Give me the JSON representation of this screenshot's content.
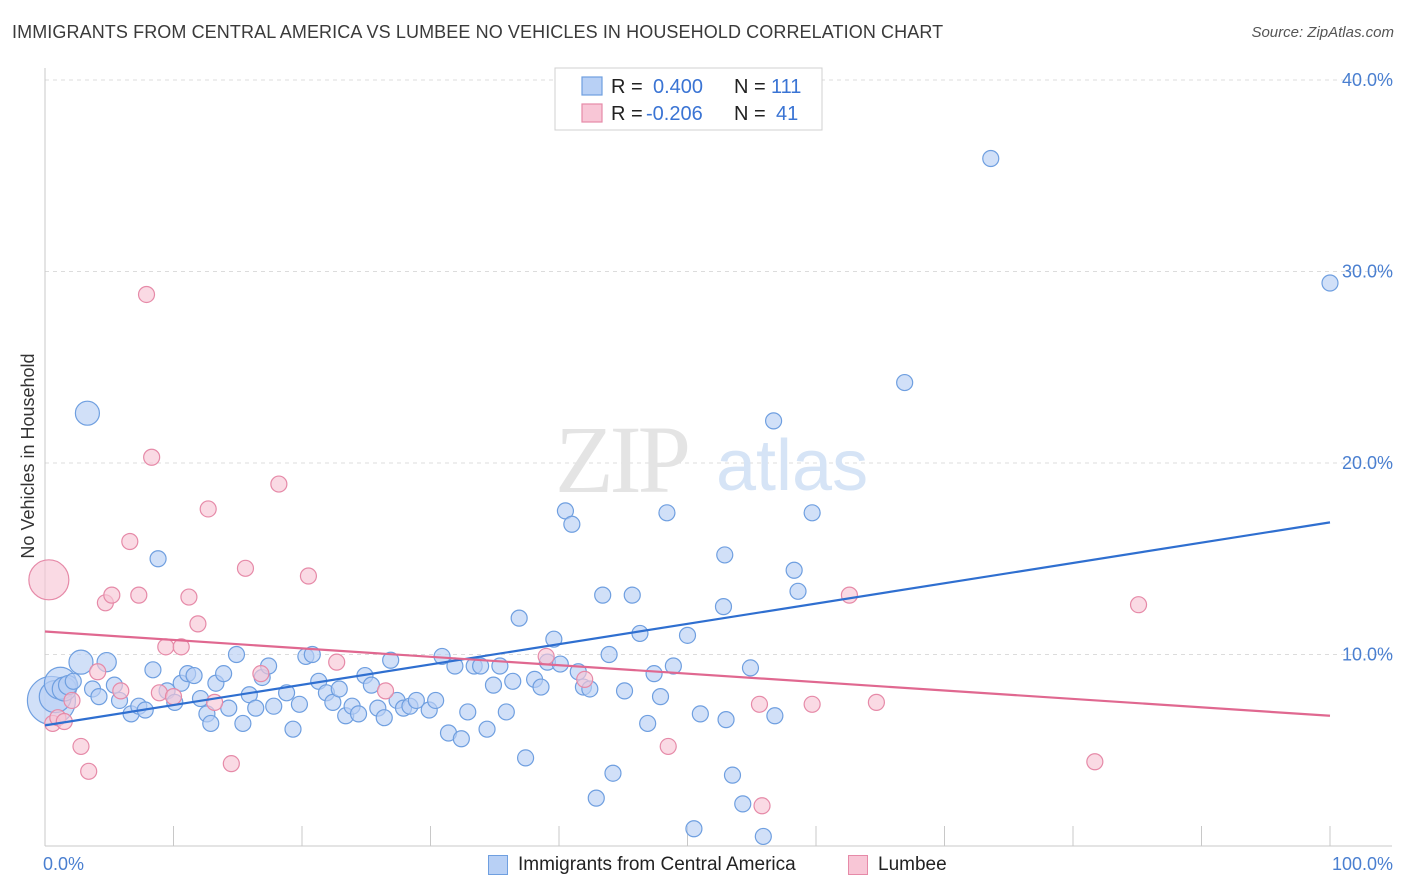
{
  "title": "IMMIGRANTS FROM CENTRAL AMERICA VS LUMBEE NO VEHICLES IN HOUSEHOLD CORRELATION CHART",
  "source": "Source: ZipAtlas.com",
  "watermark": {
    "zip": "ZIP",
    "atlas": "atlas"
  },
  "colors": {
    "blue_fill": "#b8d0f5",
    "blue_stroke": "#6f9fe0",
    "blue_line": "#2f6fd0",
    "pink_fill": "#f8c6d6",
    "pink_stroke": "#e68aa8",
    "pink_line": "#e06890",
    "value_text": "#3a74d4"
  },
  "stats_legend": [
    {
      "r_label": "R =",
      "r_value": "0.400",
      "n_label": "N =",
      "n_value": "111"
    },
    {
      "r_label": "R =",
      "r_value": "-0.206",
      "n_label": "N =",
      "n_value": "41"
    }
  ],
  "chart_data": {
    "type": "scatter",
    "title": "IMMIGRANTS FROM CENTRAL AMERICA VS LUMBEE NO VEHICLES IN HOUSEHOLD CORRELATION CHART",
    "xlabel": "",
    "ylabel": "No Vehicles in Household",
    "xlim": [
      0,
      100
    ],
    "ylim": [
      0,
      40
    ],
    "x_tick_labels": [
      "0.0%",
      "100.0%"
    ],
    "y_ticks": [
      10,
      20,
      30,
      40
    ],
    "y_tick_labels": [
      "10.0%",
      "20.0%",
      "30.0%",
      "40.0%"
    ],
    "grid": "horizontal dashed",
    "legend_position": "bottom-center",
    "series": [
      {
        "name": "Immigrants from Central America",
        "color": "#6f9fe0",
        "trend": {
          "x": [
            0,
            100
          ],
          "y": [
            6.3,
            16.9
          ]
        },
        "points": [
          [
            0.5,
            7.6,
            3
          ],
          [
            0.8,
            7.8,
            2
          ],
          [
            1.2,
            8.5,
            2
          ],
          [
            1.5,
            8.2,
            1.5
          ],
          [
            1.8,
            8.4,
            1.2
          ],
          [
            2.2,
            8.6,
            1
          ],
          [
            2.8,
            9.6,
            1.5
          ],
          [
            3.3,
            22.6,
            1.5
          ],
          [
            3.7,
            8.2,
            1
          ],
          [
            4.2,
            7.8,
            1
          ],
          [
            4.8,
            9.6,
            1.2
          ],
          [
            5.4,
            8.4,
            1
          ],
          [
            5.8,
            7.6,
            1
          ],
          [
            6.7,
            6.9,
            1
          ],
          [
            7.3,
            7.3,
            1
          ],
          [
            7.8,
            7.1,
            1
          ],
          [
            8.4,
            9.2,
            1
          ],
          [
            8.8,
            15.0,
            1
          ],
          [
            9.5,
            8.1,
            1
          ],
          [
            10.1,
            7.5,
            1
          ],
          [
            10.6,
            8.5,
            1
          ],
          [
            11.1,
            9.0,
            1
          ],
          [
            11.6,
            8.9,
            1
          ],
          [
            12.1,
            7.7,
            1
          ],
          [
            12.6,
            6.9,
            1
          ],
          [
            12.9,
            6.4,
            1
          ],
          [
            13.3,
            8.5,
            1
          ],
          [
            13.9,
            9.0,
            1
          ],
          [
            14.3,
            7.2,
            1
          ],
          [
            14.9,
            10.0,
            1
          ],
          [
            15.4,
            6.4,
            1
          ],
          [
            15.9,
            7.9,
            1
          ],
          [
            16.4,
            7.2,
            1
          ],
          [
            16.9,
            8.8,
            1
          ],
          [
            17.4,
            9.4,
            1
          ],
          [
            17.8,
            7.3,
            1
          ],
          [
            18.8,
            8.0,
            1
          ],
          [
            19.3,
            6.1,
            1
          ],
          [
            19.8,
            7.4,
            1
          ],
          [
            20.3,
            9.9,
            1
          ],
          [
            20.8,
            10.0,
            1
          ],
          [
            21.3,
            8.6,
            1
          ],
          [
            21.9,
            8.0,
            1
          ],
          [
            22.4,
            7.5,
            1
          ],
          [
            22.9,
            8.2,
            1
          ],
          [
            23.4,
            6.8,
            1
          ],
          [
            23.9,
            7.3,
            1
          ],
          [
            24.4,
            6.9,
            1
          ],
          [
            24.9,
            8.9,
            1
          ],
          [
            25.4,
            8.4,
            1
          ],
          [
            25.9,
            7.2,
            1
          ],
          [
            26.4,
            6.7,
            1
          ],
          [
            26.9,
            9.7,
            1
          ],
          [
            27.4,
            7.6,
            1
          ],
          [
            27.9,
            7.2,
            1
          ],
          [
            28.4,
            7.3,
            1
          ],
          [
            28.9,
            7.6,
            1
          ],
          [
            29.9,
            7.1,
            1
          ],
          [
            30.4,
            7.6,
            1
          ],
          [
            30.9,
            9.9,
            1
          ],
          [
            31.4,
            5.9,
            1
          ],
          [
            31.9,
            9.4,
            1
          ],
          [
            32.4,
            5.6,
            1
          ],
          [
            32.9,
            7.0,
            1
          ],
          [
            33.4,
            9.4,
            1
          ],
          [
            33.9,
            9.4,
            1
          ],
          [
            34.4,
            6.1,
            1
          ],
          [
            34.9,
            8.4,
            1
          ],
          [
            35.4,
            9.4,
            1
          ],
          [
            35.9,
            7.0,
            1
          ],
          [
            36.4,
            8.6,
            1
          ],
          [
            36.9,
            11.9,
            1
          ],
          [
            37.4,
            4.6,
            1
          ],
          [
            38.1,
            8.7,
            1
          ],
          [
            38.6,
            8.3,
            1
          ],
          [
            39.1,
            9.6,
            1
          ],
          [
            39.6,
            10.8,
            1
          ],
          [
            40.1,
            9.5,
            1
          ],
          [
            40.5,
            17.5,
            1
          ],
          [
            41.0,
            16.8,
            1
          ],
          [
            41.5,
            9.1,
            1
          ],
          [
            41.9,
            8.3,
            1
          ],
          [
            42.4,
            8.2,
            1
          ],
          [
            42.9,
            2.5,
            1
          ],
          [
            43.4,
            13.1,
            1
          ],
          [
            43.9,
            10.0,
            1
          ],
          [
            44.2,
            3.8,
            1
          ],
          [
            45.1,
            8.1,
            1
          ],
          [
            45.7,
            13.1,
            1
          ],
          [
            46.3,
            11.1,
            1
          ],
          [
            46.9,
            6.4,
            1
          ],
          [
            47.4,
            9.0,
            1
          ],
          [
            47.9,
            7.8,
            1
          ],
          [
            48.4,
            17.4,
            1
          ],
          [
            48.9,
            9.4,
            1
          ],
          [
            50.0,
            11.0,
            1
          ],
          [
            50.5,
            0.9,
            1
          ],
          [
            51.0,
            6.9,
            1
          ],
          [
            52.8,
            12.5,
            1
          ],
          [
            53.0,
            6.6,
            1
          ],
          [
            53.5,
            3.7,
            1
          ],
          [
            54.3,
            2.2,
            1
          ],
          [
            52.9,
            15.2,
            1
          ],
          [
            54.9,
            9.3,
            1
          ],
          [
            55.9,
            0.5,
            1
          ],
          [
            56.8,
            6.8,
            1
          ],
          [
            56.7,
            22.2,
            1
          ],
          [
            58.3,
            14.4,
            1
          ],
          [
            58.6,
            13.3,
            1
          ],
          [
            59.7,
            17.4,
            1
          ],
          [
            66.9,
            24.2,
            1
          ],
          [
            73.6,
            35.9,
            1
          ],
          [
            100.0,
            29.4,
            1
          ]
        ]
      },
      {
        "name": "Lumbee",
        "color": "#e68aa8",
        "trend": {
          "x": [
            0,
            100
          ],
          "y": [
            11.2,
            6.8
          ]
        },
        "points": [
          [
            0.3,
            13.9,
            2.5
          ],
          [
            0.6,
            6.4,
            1
          ],
          [
            1.0,
            6.7,
            1
          ],
          [
            1.5,
            6.5,
            1
          ],
          [
            2.1,
            7.6,
            1
          ],
          [
            2.8,
            5.2,
            1
          ],
          [
            3.4,
            3.9,
            1
          ],
          [
            4.1,
            9.1,
            1
          ],
          [
            4.7,
            12.7,
            1
          ],
          [
            5.2,
            13.1,
            1
          ],
          [
            5.9,
            8.1,
            1
          ],
          [
            6.6,
            15.9,
            1
          ],
          [
            7.3,
            13.1,
            1
          ],
          [
            7.9,
            28.8,
            1
          ],
          [
            8.3,
            20.3,
            1
          ],
          [
            8.9,
            8.0,
            1
          ],
          [
            9.4,
            10.4,
            1
          ],
          [
            10.0,
            7.8,
            1
          ],
          [
            10.6,
            10.4,
            1
          ],
          [
            11.2,
            13.0,
            1
          ],
          [
            11.9,
            11.6,
            1
          ],
          [
            12.7,
            17.6,
            1
          ],
          [
            13.2,
            7.5,
            1
          ],
          [
            14.5,
            4.3,
            1
          ],
          [
            15.6,
            14.5,
            1
          ],
          [
            16.8,
            9.0,
            1
          ],
          [
            18.2,
            18.9,
            1
          ],
          [
            20.5,
            14.1,
            1
          ],
          [
            22.7,
            9.6,
            1
          ],
          [
            26.5,
            8.1,
            1
          ],
          [
            39.0,
            9.9,
            1
          ],
          [
            42.0,
            8.7,
            1
          ],
          [
            48.5,
            5.2,
            1
          ],
          [
            55.6,
            7.4,
            1
          ],
          [
            55.8,
            2.1,
            1
          ],
          [
            59.7,
            7.4,
            1
          ],
          [
            62.6,
            13.1,
            1
          ],
          [
            64.7,
            7.5,
            1
          ],
          [
            81.7,
            4.4,
            1
          ],
          [
            85.1,
            12.6,
            1
          ]
        ]
      }
    ]
  },
  "bottom_legend": [
    {
      "label": "Immigrants from Central America"
    },
    {
      "label": "Lumbee"
    }
  ]
}
